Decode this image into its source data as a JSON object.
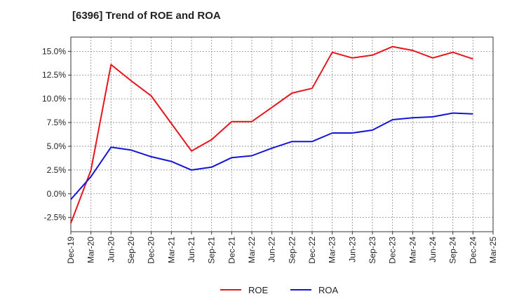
{
  "chart_data": {
    "type": "line",
    "title": "[6396]  Trend of ROE and ROA",
    "xlabel": "",
    "ylabel": "",
    "categories": [
      "Dec-19",
      "Mar-20",
      "Jun-20",
      "Sep-20",
      "Dec-20",
      "Mar-21",
      "Jun-21",
      "Sep-21",
      "Dec-21",
      "Mar-22",
      "Jun-22",
      "Sep-22",
      "Dec-22",
      "Mar-23",
      "Jun-23",
      "Sep-23",
      "Dec-23",
      "Mar-24",
      "Jun-24",
      "Sep-24",
      "Dec-24",
      "Mar-25"
    ],
    "ylim": [
      -4.0,
      16.5
    ],
    "yticks": [
      -2.5,
      0.0,
      2.5,
      5.0,
      7.5,
      10.0,
      12.5,
      15.0
    ],
    "ytick_labels": [
      "-2.5%",
      "0.0%",
      "2.5%",
      "5.0%",
      "7.5%",
      "10.0%",
      "12.5%",
      "15.0%"
    ],
    "grid": true,
    "legend_position": "bottom-center",
    "series": [
      {
        "name": "ROE",
        "color": "#e8141b",
        "values": [
          -3.1,
          2.5,
          13.6,
          11.9,
          10.3,
          7.4,
          4.5,
          5.7,
          7.6,
          7.6,
          9.1,
          10.6,
          11.1,
          14.9,
          14.3,
          14.6,
          15.5,
          15.1,
          14.3,
          14.9,
          14.2,
          null
        ]
      },
      {
        "name": "ROA",
        "color": "#1414d8",
        "values": [
          -0.6,
          1.8,
          4.9,
          4.6,
          3.9,
          3.4,
          2.5,
          2.8,
          3.8,
          4.0,
          4.8,
          5.5,
          5.5,
          6.4,
          6.4,
          6.7,
          7.8,
          8.0,
          8.1,
          8.5,
          8.4,
          null
        ]
      }
    ]
  }
}
